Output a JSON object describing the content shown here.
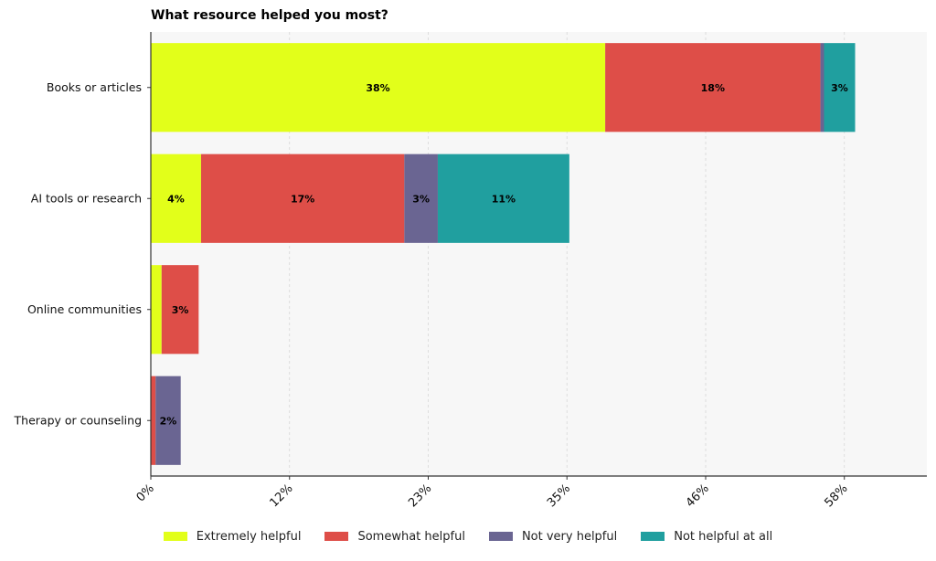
{
  "chart_data": {
    "type": "bar",
    "orientation": "horizontal",
    "stacked": true,
    "title": "What resource helped you most?",
    "categories": [
      "Books or articles",
      "AI tools or research",
      "Online communities",
      "Therapy or counseling"
    ],
    "series": [
      {
        "name": "Extremely helpful",
        "color": "#e2ff1a",
        "values": [
          38,
          4.2,
          0.9,
          0
        ]
      },
      {
        "name": "Somewhat helpful",
        "color": "#de4e48",
        "values": [
          18,
          17,
          3.1,
          0.4
        ]
      },
      {
        "name": "Not very helpful",
        "color": "#6a6592",
        "values": [
          0.3,
          2.8,
          0,
          2.1
        ]
      },
      {
        "name": "Not helpful at all",
        "color": "#209f9f",
        "values": [
          2.6,
          11,
          0,
          0
        ]
      }
    ],
    "data_labels": [
      [
        "38%",
        "18%",
        "",
        "3%"
      ],
      [
        "4%",
        "17%",
        "3%",
        "11%"
      ],
      [
        "",
        "3%",
        "",
        ""
      ],
      [
        "",
        "",
        "2%",
        ""
      ]
    ],
    "x_ticks": [
      0,
      11.6,
      23.2,
      34.8,
      46.4,
      58
    ],
    "x_tick_labels": [
      "0%",
      "12%",
      "23%",
      "35%",
      "46%",
      "58%"
    ],
    "xlim": [
      0,
      64.9
    ],
    "xlabel": "",
    "ylabel": "",
    "grid": "vertical dashed",
    "legend_position": "bottom"
  }
}
